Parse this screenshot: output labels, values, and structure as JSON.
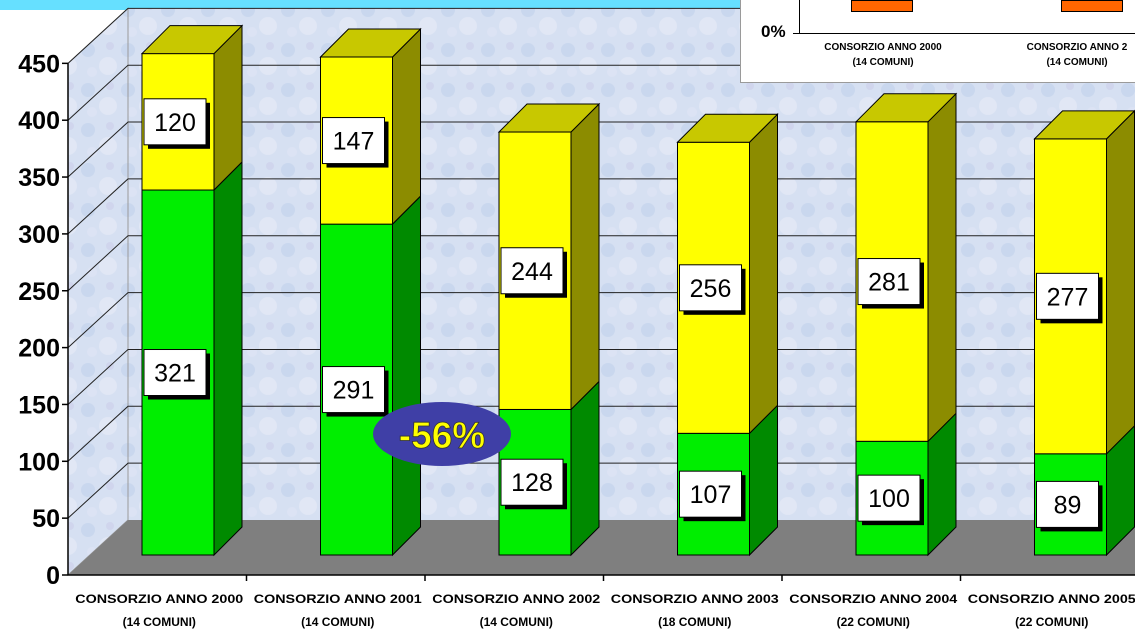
{
  "chart_data": {
    "type": "bar",
    "stacked": true,
    "categories": [
      [
        "CONSORZIO ANNO 2000",
        "(14 COMUNI)"
      ],
      [
        "CONSORZIO ANNO 2001",
        "(14 COMUNI)"
      ],
      [
        "CONSORZIO ANNO 2002",
        "(14 COMUNI)"
      ],
      [
        "CONSORZIO ANNO 2003",
        "(18 COMUNI)"
      ],
      [
        "CONSORZIO ANNO 2004",
        "(22 COMUNI)"
      ],
      [
        "CONSORZIO ANNO 2005",
        "(22 COMUNI)"
      ]
    ],
    "series": [
      {
        "color": "#00ee00",
        "side": "#008a00",
        "top": "#33cc33",
        "values": [
          321,
          291,
          128,
          107,
          100,
          89
        ]
      },
      {
        "color": "#ffff00",
        "side": "#8c8c00",
        "top": "#c8c800",
        "values": [
          120,
          147,
          244,
          256,
          281,
          277
        ]
      }
    ],
    "ylim": [
      0,
      450
    ],
    "yticks": [
      "0",
      "50",
      "100",
      "150",
      "200",
      "250",
      "300",
      "350",
      "400",
      "450"
    ],
    "grid": true,
    "annotation": {
      "text": "-56%",
      "fill": "#3f3fa6",
      "text_color": "#ffff00"
    },
    "floor_color": "#7f7f7f"
  },
  "inset": {
    "ytick": "0%",
    "categories": [
      [
        "CONSORZIO ANNO 2000",
        "(14 COMUNI)"
      ],
      [
        "CONSORZIO ANNO 2",
        "(14 COMUNI)"
      ]
    ],
    "bar_color": "#ff6600"
  }
}
